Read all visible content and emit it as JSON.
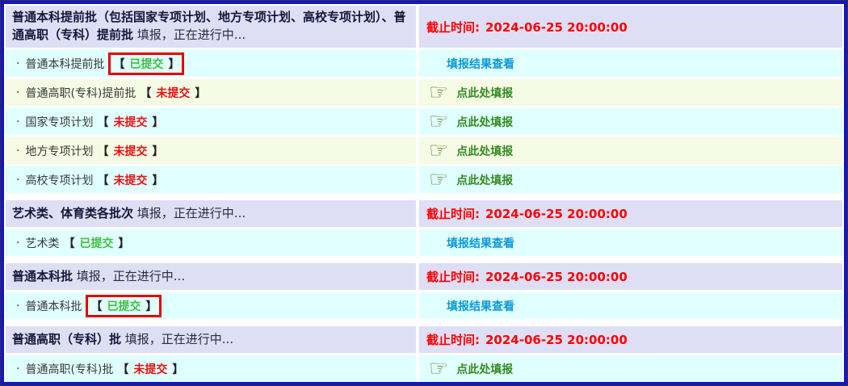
{
  "symbols": {
    "bullet": "·",
    "bracket_open": "【",
    "bracket_close": "】",
    "pointing_hand": "☞"
  },
  "colors": {
    "outer_frame": "#333333",
    "border_blue": "#1414c8",
    "header_bg": "#dedef5",
    "row_cyan": "#e0ffff",
    "row_yellow": "#f5fbe4",
    "deadline_red": "#ff0000",
    "link_blue": "#0a99d8",
    "submitted_green": "#43bd43",
    "unsubmitted_red": "#ea1010",
    "fill_green": "#368a23",
    "hand_olive": "#6e7e2e",
    "highlight_red": "#e50000"
  },
  "sections": [
    {
      "header": {
        "title_bold": "普通本科提前批（包括国家专项计划、地方专项计划、高校专项计划）、普通高职（专科）提前批",
        "title_rest": "填报，正在进行中...",
        "deadline_label": "截止时间:",
        "deadline_value": "2024-06-25 20:00:00"
      },
      "items": [
        {
          "label": "普通本科提前批",
          "status": "已提交",
          "action": "填报结果查看"
        },
        {
          "label": "普通高职(专科)提前批",
          "status": "未提交",
          "action": "点此处填报"
        },
        {
          "label": "国家专项计划",
          "status": "未提交",
          "action": "点此处填报"
        },
        {
          "label": "地方专项计划",
          "status": "未提交",
          "action": "点此处填报"
        },
        {
          "label": "高校专项计划",
          "status": "未提交",
          "action": "点此处填报"
        }
      ]
    },
    {
      "header": {
        "title_bold": "艺术类、体育类各批次",
        "title_rest": "填报，正在进行中...",
        "deadline_label": "截止时间:",
        "deadline_value": "2024-06-25 20:00:00"
      },
      "items": [
        {
          "label": "艺术类",
          "status": "已提交",
          "action": "填报结果查看"
        }
      ]
    },
    {
      "header": {
        "title_bold": "普通本科批",
        "title_rest": "填报，正在进行中...",
        "deadline_label": "截止时间:",
        "deadline_value": "2024-06-25 20:00:00"
      },
      "items": [
        {
          "label": "普通本科批",
          "status": "已提交",
          "action": "填报结果查看"
        }
      ]
    },
    {
      "header": {
        "title_bold": "普通高职（专科）批",
        "title_rest": "填报，正在进行中...",
        "deadline_label": "截止时间:",
        "deadline_value": "2024-06-25 20:00:00"
      },
      "items": [
        {
          "label": "普通高职(专科)批",
          "status": "未提交",
          "action": "点此处填报"
        }
      ]
    }
  ]
}
